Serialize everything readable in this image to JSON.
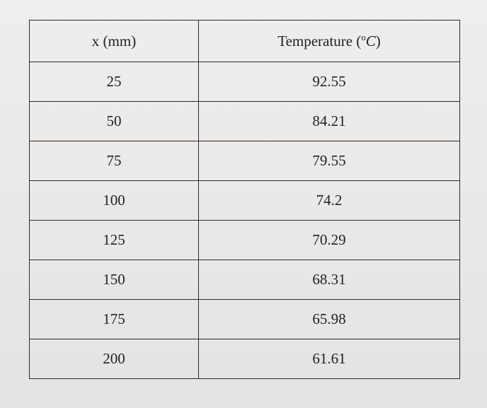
{
  "table": {
    "headers": {
      "x": "x (mm)",
      "temperature_prefix": "Temperature (",
      "temperature_degree": "o",
      "temperature_unit": "C",
      "temperature_suffix": ")"
    },
    "rows": [
      {
        "x": "25",
        "temperature": "92.55"
      },
      {
        "x": "50",
        "temperature": "84.21"
      },
      {
        "x": "75",
        "temperature": "79.55"
      },
      {
        "x": "100",
        "temperature": "74.2"
      },
      {
        "x": "125",
        "temperature": "70.29"
      },
      {
        "x": "150",
        "temperature": "68.31"
      },
      {
        "x": "175",
        "temperature": "65.98"
      },
      {
        "x": "200",
        "temperature": "61.61"
      }
    ]
  }
}
